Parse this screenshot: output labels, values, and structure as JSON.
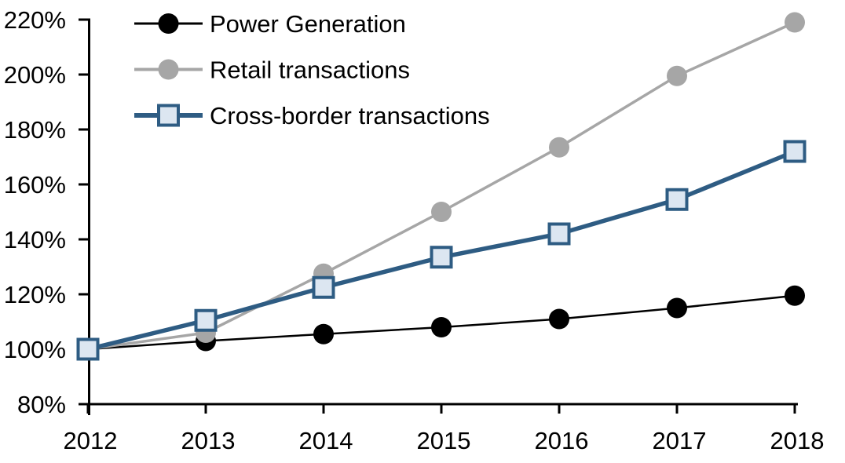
{
  "chart_data": {
    "type": "line",
    "title": "",
    "xlabel": "",
    "ylabel": "",
    "x": [
      2012,
      2013,
      2014,
      2015,
      2016,
      2017,
      2018
    ],
    "xtick_labels": [
      "2012",
      "2013",
      "2014",
      "2015",
      "2016",
      "2017",
      "2018"
    ],
    "ylim": [
      80,
      220
    ],
    "ytick_step": 20,
    "ytick_labels": [
      "80%",
      "100%",
      "120%",
      "140%",
      "160%",
      "180%",
      "200%",
      "220%"
    ],
    "grid": false,
    "legend_position": "top-left-inside",
    "background_color": "#ffffff",
    "axis_color": "#000000",
    "series": [
      {
        "name": "Power Generation",
        "values": [
          100,
          103,
          105.5,
          108,
          111,
          115,
          119.5
        ],
        "color": "#000000",
        "line_width": 2.5,
        "marker": "circle",
        "marker_fill": "#000000",
        "marker_stroke": "#000000",
        "marker_stroke_width": 0,
        "marker_size": 26
      },
      {
        "name": "Retail transactions",
        "values": [
          100,
          106,
          127.5,
          150,
          173.5,
          199.5,
          219
        ],
        "color": "#A6A6A6",
        "line_width": 3.5,
        "marker": "circle",
        "marker_fill": "#A6A6A6",
        "marker_stroke": "#A6A6A6",
        "marker_stroke_width": 0,
        "marker_size": 26
      },
      {
        "name": "Cross-border transactions",
        "values": [
          100,
          110.5,
          122.5,
          133.5,
          142,
          154.5,
          172
        ],
        "color": "#2E5C83",
        "line_width": 5.5,
        "marker": "square",
        "marker_fill": "#DCE6F1",
        "marker_stroke": "#2E5C83",
        "marker_stroke_width": 4,
        "marker_size": 25
      }
    ]
  }
}
